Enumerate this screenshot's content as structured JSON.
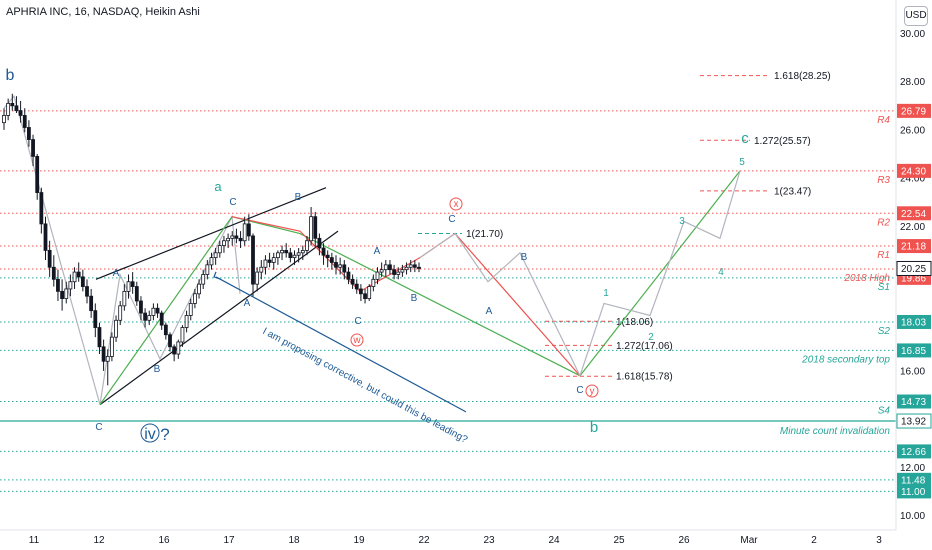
{
  "header": {
    "symbol_title": "APHRIA INC, 16, NASDAQ, Heikin Ashi",
    "currency_button": "USD"
  },
  "chart_data": {
    "type": "candlestick",
    "style": "Heikin Ashi",
    "ylim": [
      10.0,
      30.0
    ],
    "y_ticks": [
      10.0,
      12.0,
      14.0,
      16.0,
      18.0,
      20.0,
      22.0,
      24.0,
      26.0,
      28.0,
      30.0
    ],
    "x_tick_labels": [
      "11",
      "12",
      "16",
      "17",
      "18",
      "19",
      "22",
      "23",
      "24",
      "25",
      "26",
      "Mar",
      "2",
      "3"
    ],
    "candles": [
      [
        26.3,
        26.9,
        26.0,
        26.6
      ],
      [
        26.6,
        27.3,
        26.4,
        27.1
      ],
      [
        27.1,
        27.5,
        26.8,
        27.0
      ],
      [
        27.0,
        27.4,
        26.7,
        26.8
      ],
      [
        26.8,
        27.2,
        26.3,
        26.6
      ],
      [
        26.6,
        26.9,
        25.9,
        26.1
      ],
      [
        26.1,
        26.4,
        25.3,
        25.6
      ],
      [
        25.6,
        25.8,
        24.5,
        24.9
      ],
      [
        24.9,
        25.0,
        23.1,
        23.4
      ],
      [
        23.4,
        23.6,
        21.7,
        22.1
      ],
      [
        22.1,
        22.4,
        20.6,
        21.0
      ],
      [
        21.0,
        21.4,
        19.9,
        20.3
      ],
      [
        20.3,
        20.8,
        19.5,
        19.8
      ],
      [
        19.8,
        20.2,
        18.9,
        19.3
      ],
      [
        19.3,
        19.8,
        18.5,
        19.0
      ],
      [
        19.0,
        19.7,
        18.8,
        19.4
      ],
      [
        19.4,
        20.0,
        19.1,
        19.7
      ],
      [
        19.7,
        20.3,
        19.4,
        20.1
      ],
      [
        20.1,
        20.5,
        19.7,
        19.9
      ],
      [
        19.9,
        20.2,
        19.3,
        19.5
      ],
      [
        19.5,
        19.8,
        18.8,
        19.1
      ],
      [
        19.1,
        19.4,
        18.2,
        18.5
      ],
      [
        18.5,
        18.8,
        17.4,
        17.8
      ],
      [
        17.8,
        18.0,
        16.7,
        17.0
      ],
      [
        17.0,
        17.3,
        16.0,
        16.4
      ],
      [
        16.4,
        16.9,
        15.4,
        16.6
      ],
      [
        16.6,
        17.6,
        16.4,
        17.4
      ],
      [
        17.4,
        18.3,
        17.2,
        18.1
      ],
      [
        18.1,
        18.9,
        17.9,
        18.7
      ],
      [
        18.7,
        19.6,
        18.5,
        19.3
      ],
      [
        19.3,
        20.0,
        19.0,
        19.7
      ],
      [
        19.7,
        20.1,
        19.2,
        19.5
      ],
      [
        19.5,
        19.7,
        18.7,
        18.9
      ],
      [
        18.9,
        19.1,
        18.1,
        18.4
      ],
      [
        18.4,
        18.6,
        17.8,
        18.1
      ],
      [
        18.1,
        18.5,
        17.9,
        18.3
      ],
      [
        18.3,
        18.8,
        18.1,
        18.6
      ],
      [
        18.6,
        18.8,
        18.2,
        18.4
      ],
      [
        18.4,
        18.5,
        17.7,
        17.9
      ],
      [
        17.9,
        18.0,
        17.3,
        17.5
      ],
      [
        17.5,
        17.6,
        16.8,
        17.0
      ],
      [
        17.0,
        17.1,
        16.4,
        16.7
      ],
      [
        16.7,
        17.3,
        16.5,
        17.2
      ],
      [
        17.2,
        17.9,
        17.0,
        17.8
      ],
      [
        17.8,
        18.5,
        17.6,
        18.3
      ],
      [
        18.3,
        19.0,
        18.1,
        18.8
      ],
      [
        18.8,
        19.4,
        18.6,
        19.2
      ],
      [
        19.2,
        19.8,
        19.0,
        19.6
      ],
      [
        19.6,
        20.2,
        19.4,
        20.0
      ],
      [
        20.0,
        20.6,
        19.8,
        20.4
      ],
      [
        20.4,
        20.9,
        20.2,
        20.7
      ],
      [
        20.7,
        21.1,
        20.4,
        20.9
      ],
      [
        20.9,
        21.4,
        20.7,
        21.2
      ],
      [
        21.2,
        21.6,
        20.9,
        21.4
      ],
      [
        21.4,
        21.7,
        21.1,
        21.5
      ],
      [
        21.5,
        21.8,
        21.2,
        21.6
      ],
      [
        21.6,
        21.9,
        21.3,
        21.5
      ],
      [
        21.5,
        21.8,
        21.1,
        21.4
      ],
      [
        21.4,
        22.4,
        21.2,
        22.1
      ],
      [
        22.1,
        22.5,
        21.4,
        21.6
      ],
      [
        21.6,
        21.7,
        19.1,
        19.6
      ],
      [
        19.6,
        20.3,
        19.3,
        20.1
      ],
      [
        20.1,
        20.6,
        19.8,
        20.3
      ],
      [
        20.3,
        20.8,
        20.0,
        20.6
      ],
      [
        20.6,
        20.9,
        20.3,
        20.5
      ],
      [
        20.5,
        20.9,
        20.2,
        20.7
      ],
      [
        20.7,
        21.0,
        20.4,
        20.9
      ],
      [
        20.9,
        21.2,
        20.6,
        21.0
      ],
      [
        21.0,
        21.3,
        20.7,
        20.9
      ],
      [
        20.9,
        21.1,
        20.5,
        20.7
      ],
      [
        20.7,
        21.0,
        20.4,
        20.8
      ],
      [
        20.8,
        21.1,
        20.5,
        20.9
      ],
      [
        20.9,
        21.2,
        20.6,
        21.0
      ],
      [
        21.0,
        21.6,
        20.8,
        21.4
      ],
      [
        21.4,
        22.8,
        21.2,
        22.4
      ],
      [
        22.4,
        22.6,
        21.1,
        21.5
      ],
      [
        21.5,
        21.7,
        20.8,
        21.1
      ],
      [
        21.1,
        21.3,
        20.4,
        20.8
      ],
      [
        20.8,
        21.0,
        20.3,
        20.7
      ],
      [
        20.7,
        20.9,
        20.2,
        20.5
      ],
      [
        20.5,
        20.8,
        20.0,
        20.3
      ],
      [
        20.3,
        20.7,
        20.0,
        20.4
      ],
      [
        20.4,
        20.6,
        19.8,
        20.1
      ],
      [
        20.1,
        20.3,
        19.6,
        19.8
      ],
      [
        19.8,
        20.0,
        19.4,
        19.6
      ],
      [
        19.6,
        19.8,
        19.2,
        19.4
      ],
      [
        19.4,
        19.6,
        18.9,
        19.2
      ],
      [
        19.2,
        19.4,
        18.8,
        19.0
      ],
      [
        19.0,
        19.6,
        18.9,
        19.5
      ],
      [
        19.5,
        20.0,
        19.3,
        19.8
      ],
      [
        19.8,
        20.3,
        19.6,
        20.1
      ],
      [
        20.1,
        20.5,
        19.9,
        20.2
      ],
      [
        20.2,
        20.6,
        19.9,
        20.4
      ],
      [
        20.4,
        20.6,
        20.0,
        20.2
      ],
      [
        20.2,
        20.4,
        19.8,
        20.0
      ],
      [
        20.0,
        20.3,
        19.8,
        20.1
      ],
      [
        20.1,
        20.4,
        19.9,
        20.2
      ],
      [
        20.2,
        20.5,
        20.0,
        20.3
      ],
      [
        20.3,
        20.6,
        20.1,
        20.4
      ],
      [
        20.4,
        20.6,
        20.1,
        20.3
      ],
      [
        20.3,
        20.5,
        20.1,
        20.25
      ]
    ],
    "price_levels": [
      {
        "value": 26.79,
        "color": "#ef5350",
        "label": "R4",
        "label_color": "#ef5350",
        "tag_bg": "#ef5350"
      },
      {
        "value": 24.3,
        "color": "#ef5350",
        "label": "R3",
        "label_color": "#ef5350",
        "tag_bg": "#ef5350"
      },
      {
        "value": 22.54,
        "color": "#ef5350",
        "label": "R2",
        "label_color": "#ef5350",
        "tag_bg": "#ef5350"
      },
      {
        "value": 21.18,
        "color": "#ef5350",
        "label": "R1",
        "label_color": "#ef5350",
        "tag_bg": "#ef5350"
      },
      {
        "value": 20.23,
        "color": "#ef5350",
        "label": "2018 High",
        "label_color": "#ef5350",
        "tag_bg": ""
      },
      {
        "value": 19.86,
        "color": "#26a69a",
        "label": "S1",
        "label_color": "#26a69a",
        "tag_bg": "#ef5350"
      },
      {
        "value": 18.03,
        "color": "#26a69a",
        "label": "S2",
        "label_color": "#26a69a",
        "tag_bg": "#26a69a"
      },
      {
        "value": 16.85,
        "color": "#26a69a",
        "label": "2018 secondary top",
        "label_color": "#26a69a",
        "tag_bg": "#26a69a"
      },
      {
        "value": 14.73,
        "color": "#26a69a",
        "label": "S4",
        "label_color": "#26a69a",
        "tag_bg": "#26a69a"
      },
      {
        "value": 12.66,
        "color": "#26a69a",
        "label": "",
        "label_color": "#26a69a",
        "tag_bg": "#26a69a"
      },
      {
        "value": 11.48,
        "color": "#26a69a",
        "label": "",
        "label_color": "#26a69a",
        "tag_bg": "#26a69a"
      },
      {
        "value": 11.0,
        "color": "#26a69a",
        "label": "",
        "label_color": "#26a69a",
        "tag_bg": "#26a69a"
      }
    ],
    "invalidation_line": {
      "value": 13.92,
      "color": "#26a69a",
      "label": "Minute count invalidation"
    },
    "current_price": {
      "value": 20.25,
      "tag_bg": "#ffffff"
    },
    "fib_levels": [
      {
        "label": "1.618(28.25)",
        "value": 28.25
      },
      {
        "label": "1.272(25.57)",
        "value": 25.57
      },
      {
        "label": "1(23.47)",
        "value": 23.47
      },
      {
        "label": "1(21.70)",
        "value": 21.7,
        "color": "#26a69a"
      },
      {
        "label": "1(18.06)",
        "value": 18.06
      },
      {
        "label": "1.272(17.06)",
        "value": 17.06
      },
      {
        "label": "1.618(15.78)",
        "value": 15.78
      }
    ],
    "wave_labels": [
      {
        "text": "b",
        "color": "#1e5a96"
      },
      {
        "text": "a",
        "color": "#26a69a"
      },
      {
        "text": "C",
        "color": "#1e5a96"
      },
      {
        "text": "B",
        "color": "#1e5a96"
      },
      {
        "text": "A",
        "color": "#1e5a96"
      },
      {
        "text": "B",
        "color": "#1e5a96"
      },
      {
        "text": "C",
        "color": "#1e5a96"
      },
      {
        "text": "iv",
        "color": "#1e5a96"
      },
      {
        "text": "?",
        "color": "#1e5a96"
      },
      {
        "text": "A",
        "color": "#1e5a96"
      },
      {
        "text": "C",
        "color": "#1e5a96"
      },
      {
        "text": "A",
        "color": "#1e5a96"
      },
      {
        "text": "B",
        "color": "#1e5a96"
      },
      {
        "text": "w",
        "color": "#ef5350"
      },
      {
        "text": "x",
        "color": "#ef5350"
      },
      {
        "text": "C",
        "color": "#1e5a96"
      },
      {
        "text": "B",
        "color": "#1e5a96"
      },
      {
        "text": "A",
        "color": "#1e5a96"
      },
      {
        "text": "y",
        "color": "#ef5350"
      },
      {
        "text": "C",
        "color": "#1e5a96"
      },
      {
        "text": "b",
        "color": "#26a69a"
      },
      {
        "text": "c",
        "color": "#26a69a"
      },
      {
        "text": "1",
        "color": "#26a69a"
      },
      {
        "text": "2",
        "color": "#26a69a"
      },
      {
        "text": "3",
        "color": "#26a69a"
      },
      {
        "text": "4",
        "color": "#26a69a"
      },
      {
        "text": "5",
        "color": "#26a69a"
      }
    ],
    "annotation": {
      "text": "I am proposing corrective, but could this be leading?",
      "color": "#1e5a96"
    },
    "colors": {
      "bull": "#131722",
      "bear": "#ffffff",
      "wick": "#131722",
      "accent": "#2962ff"
    },
    "grid": false,
    "legend": "none"
  }
}
